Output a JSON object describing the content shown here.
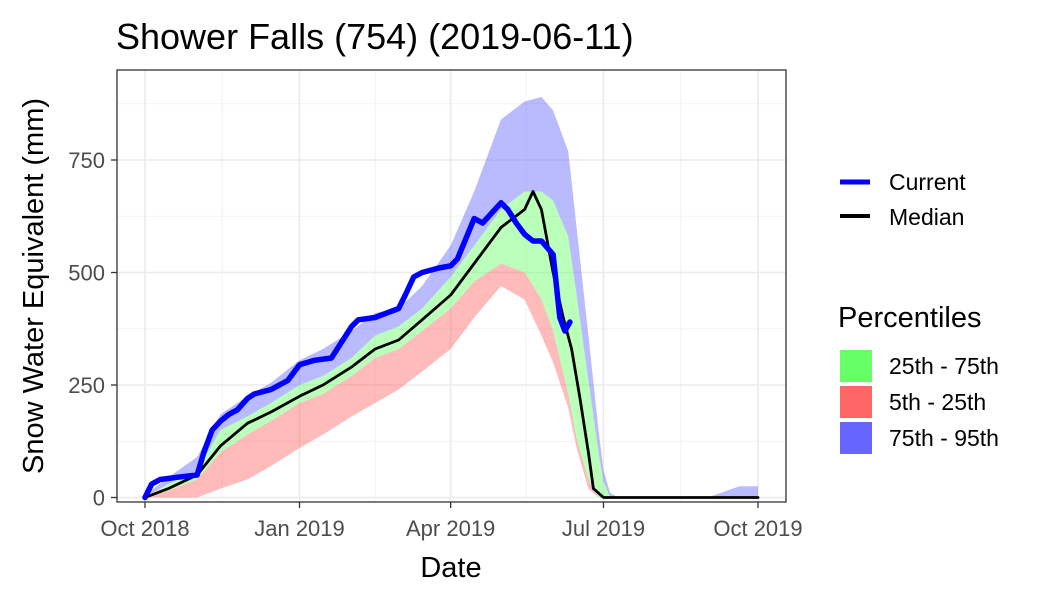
{
  "chart_data": {
    "type": "area",
    "title": "Shower Falls (754) (2019-06-11)",
    "xlabel": "Date",
    "ylabel": "Snow Water Equivalent (mm)",
    "xlim": [
      "2018-10-01",
      "2019-10-01"
    ],
    "ylim": [
      -10,
      950
    ],
    "x_ticks": [
      "2018-10-01",
      "2019-01-01",
      "2019-04-01",
      "2019-07-01",
      "2019-10-01"
    ],
    "x_tick_labels": [
      "Oct 2018",
      "Jan 2019",
      "Apr 2019",
      "Jul 2019",
      "Oct 2019"
    ],
    "y_ticks": [
      0,
      250,
      500,
      750
    ],
    "y_tick_labels": [
      "0",
      "250",
      "500",
      "750"
    ],
    "grid": true,
    "legend_position": "right",
    "legend": {
      "lines": [
        {
          "label": "Current",
          "color": "#0000ff"
        },
        {
          "label": "Median",
          "color": "#000000"
        }
      ],
      "percentiles_title": "Percentiles",
      "fills": [
        {
          "label": "25th - 75th",
          "color": "#66ff66"
        },
        {
          "label": "5th - 25th",
          "color": "#ff6666"
        },
        {
          "label": "75th - 95th",
          "color": "#6666ff"
        }
      ]
    },
    "band_dates": [
      "2018-10-01",
      "2018-10-15",
      "2018-11-01",
      "2018-11-15",
      "2018-12-01",
      "2018-12-15",
      "2019-01-01",
      "2019-01-15",
      "2019-02-01",
      "2019-02-15",
      "2019-03-01",
      "2019-03-15",
      "2019-04-01",
      "2019-04-15",
      "2019-05-01",
      "2019-05-15",
      "2019-05-25",
      "2019-06-01",
      "2019-06-10",
      "2019-06-15",
      "2019-06-22",
      "2019-06-28",
      "2019-07-01",
      "2019-07-05",
      "2019-07-10",
      "2019-07-15",
      "2019-08-01",
      "2019-09-01",
      "2019-09-20",
      "2019-10-01"
    ],
    "series": [
      {
        "name": "75th - 95th",
        "role": "band",
        "color": "#6666ff",
        "lower": [
          0,
          30,
          60,
          150,
          180,
          210,
          250,
          270,
          310,
          360,
          380,
          420,
          490,
          560,
          640,
          680,
          680,
          660,
          580,
          450,
          260,
          100,
          35,
          0,
          0,
          0,
          0,
          0,
          0,
          0
        ],
        "upper": [
          5,
          45,
          90,
          185,
          225,
          255,
          305,
          330,
          370,
          410,
          420,
          470,
          560,
          680,
          840,
          880,
          890,
          860,
          770,
          600,
          360,
          150,
          60,
          10,
          0,
          0,
          0,
          0,
          25,
          25
        ]
      },
      {
        "name": "25th - 75th",
        "role": "band",
        "color": "#66ff66",
        "lower": [
          0,
          15,
          40,
          100,
          140,
          170,
          210,
          230,
          270,
          310,
          330,
          370,
          420,
          480,
          520,
          500,
          440,
          370,
          230,
          130,
          40,
          0,
          0,
          0,
          0,
          0,
          0,
          0,
          0,
          0
        ],
        "upper": [
          0,
          30,
          60,
          150,
          180,
          210,
          250,
          270,
          310,
          360,
          380,
          420,
          490,
          560,
          640,
          680,
          680,
          660,
          580,
          450,
          260,
          100,
          35,
          0,
          0,
          0,
          0,
          0,
          0,
          0
        ]
      },
      {
        "name": "5th - 25th",
        "role": "band",
        "color": "#ff6666",
        "lower": [
          0,
          0,
          0,
          20,
          40,
          70,
          110,
          140,
          180,
          210,
          240,
          280,
          330,
          400,
          470,
          440,
          360,
          300,
          200,
          110,
          20,
          0,
          0,
          0,
          0,
          0,
          0,
          0,
          0,
          0
        ],
        "upper": [
          0,
          15,
          40,
          100,
          140,
          170,
          210,
          230,
          270,
          310,
          330,
          370,
          420,
          480,
          520,
          500,
          440,
          370,
          230,
          130,
          40,
          0,
          0,
          0,
          0,
          0,
          0,
          0,
          0,
          0
        ]
      },
      {
        "name": "Median",
        "role": "line",
        "color": "#000000",
        "x": [
          "2018-10-01",
          "2018-10-15",
          "2018-11-01",
          "2018-11-15",
          "2018-12-01",
          "2018-12-15",
          "2019-01-01",
          "2019-01-15",
          "2019-02-01",
          "2019-02-15",
          "2019-03-01",
          "2019-03-15",
          "2019-04-01",
          "2019-04-15",
          "2019-05-01",
          "2019-05-15",
          "2019-05-20",
          "2019-05-25",
          "2019-06-01",
          "2019-06-07",
          "2019-06-12",
          "2019-06-17",
          "2019-06-22",
          "2019-06-25",
          "2019-07-01",
          "2019-08-01",
          "2019-09-01",
          "2019-10-01"
        ],
        "values": [
          0,
          20,
          50,
          115,
          165,
          190,
          225,
          250,
          290,
          330,
          350,
          395,
          450,
          520,
          600,
          640,
          680,
          640,
          500,
          400,
          330,
          220,
          100,
          20,
          0,
          0,
          0,
          0
        ]
      },
      {
        "name": "Current",
        "role": "line",
        "color": "#0000ff",
        "x": [
          "2018-10-01",
          "2018-10-05",
          "2018-10-10",
          "2018-10-20",
          "2018-11-01",
          "2018-11-05",
          "2018-11-10",
          "2018-11-15",
          "2018-11-20",
          "2018-11-25",
          "2018-12-01",
          "2018-12-05",
          "2018-12-15",
          "2018-12-25",
          "2019-01-01",
          "2019-01-10",
          "2019-01-20",
          "2019-02-01",
          "2019-02-05",
          "2019-02-15",
          "2019-03-01",
          "2019-03-05",
          "2019-03-10",
          "2019-03-15",
          "2019-03-25",
          "2019-04-01",
          "2019-04-05",
          "2019-04-10",
          "2019-04-15",
          "2019-04-20",
          "2019-05-01",
          "2019-05-05",
          "2019-05-10",
          "2019-05-15",
          "2019-05-20",
          "2019-05-25",
          "2019-06-01",
          "2019-06-05",
          "2019-06-08",
          "2019-06-11"
        ],
        "values": [
          0,
          30,
          40,
          45,
          50,
          100,
          150,
          170,
          185,
          195,
          220,
          230,
          240,
          260,
          295,
          305,
          310,
          380,
          395,
          400,
          420,
          450,
          490,
          500,
          510,
          515,
          530,
          575,
          620,
          610,
          655,
          640,
          610,
          585,
          570,
          570,
          540,
          400,
          370,
          390
        ]
      }
    ]
  }
}
